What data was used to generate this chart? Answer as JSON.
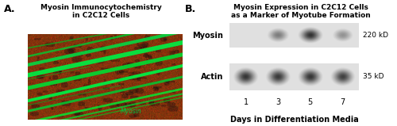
{
  "panel_A": {
    "label": "A.",
    "title_line1": "Myosin Immunocytochemistry",
    "title_line2": "in C2C12 Cells",
    "watermark": "Myosin",
    "watermark_color": "#00cc44",
    "bg_color_dark": "#6B2000",
    "bg_color_mid": "#8B3A10",
    "bg_color_light": "#a04020",
    "myotube_color": "#00dd33"
  },
  "panel_B": {
    "label": "B.",
    "title_line1": "Myosin Expression in C2C12 Cells",
    "title_line2": "as a Marker of Myotube Formation",
    "row_labels": [
      "Myosin",
      "Actin"
    ],
    "kd_labels": [
      "220 kD",
      "35 kD"
    ],
    "day_labels": [
      "1",
      "3",
      "5",
      "7"
    ],
    "xlabel": "Days in Differentiation Media",
    "myosin_band_intensities": [
      0.0,
      0.6,
      0.95,
      0.5
    ],
    "actin_band_intensities": [
      0.9,
      0.88,
      0.9,
      0.85
    ]
  },
  "figure_bg": "#ffffff",
  "title_fontsize": 6.5,
  "label_fontsize": 9,
  "body_fontsize": 6.5
}
